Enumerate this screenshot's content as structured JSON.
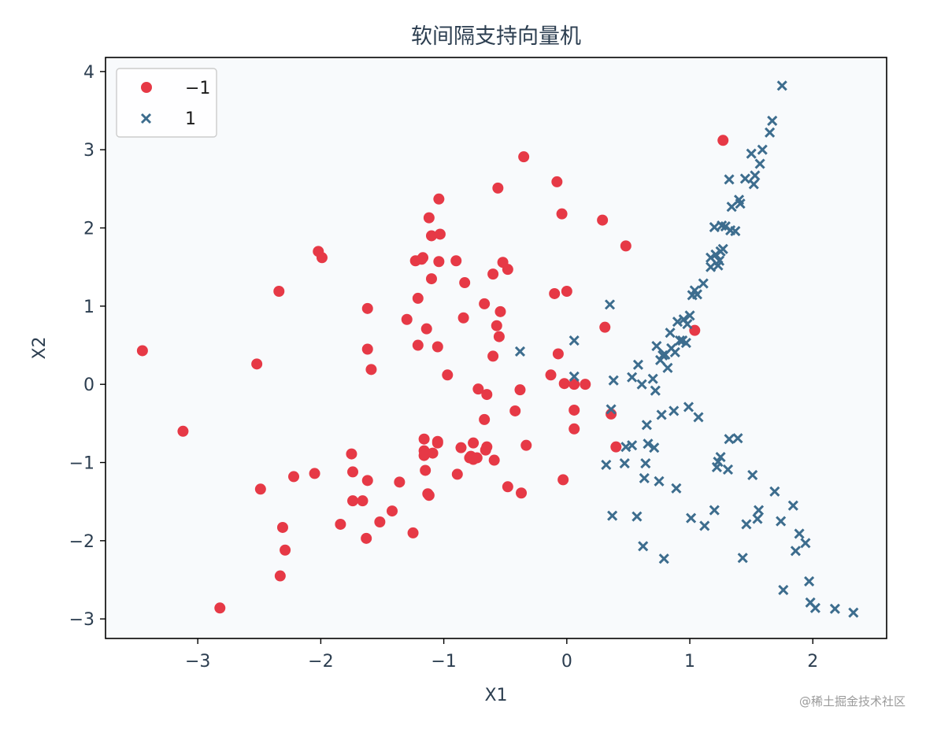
{
  "chart_data": {
    "type": "scatter",
    "title": "软间隔支持向量机",
    "xlabel": "X1",
    "ylabel": "X2",
    "xlim": [
      -3.75,
      2.6
    ],
    "ylim": [
      -3.25,
      4.18
    ],
    "xticks": [
      -3,
      -2,
      -1,
      0,
      1,
      2
    ],
    "yticks": [
      -3,
      -2,
      -1,
      0,
      1,
      2,
      3,
      4
    ],
    "xtick_labels": [
      "−3",
      "−2",
      "−1",
      "0",
      "1",
      "2"
    ],
    "ytick_labels": [
      "−3",
      "−2",
      "−1",
      "0",
      "1",
      "2",
      "3",
      "4"
    ],
    "grid": false,
    "legend_position": "upper-left",
    "background": "#f8fafc",
    "series": [
      {
        "name": "−1",
        "marker": "circle",
        "color": "#e63946",
        "points": [
          [
            -3.45,
            0.43
          ],
          [
            -3.12,
            -0.6
          ],
          [
            -2.82,
            -2.86
          ],
          [
            -2.52,
            0.26
          ],
          [
            -2.49,
            -1.34
          ],
          [
            -2.34,
            1.19
          ],
          [
            -2.33,
            -2.45
          ],
          [
            -2.31,
            -1.83
          ],
          [
            -2.29,
            -2.12
          ],
          [
            -2.22,
            -1.18
          ],
          [
            -2.05,
            -1.14
          ],
          [
            -2.02,
            1.7
          ],
          [
            -1.99,
            1.62
          ],
          [
            -1.84,
            -1.79
          ],
          [
            -1.75,
            -0.89
          ],
          [
            -1.74,
            -1.12
          ],
          [
            -1.74,
            -1.49
          ],
          [
            -1.66,
            -1.49
          ],
          [
            -1.63,
            -1.97
          ],
          [
            -1.62,
            0.97
          ],
          [
            -1.62,
            0.45
          ],
          [
            -1.62,
            -1.23
          ],
          [
            -1.59,
            0.19
          ],
          [
            -1.52,
            -1.76
          ],
          [
            -1.42,
            -1.62
          ],
          [
            -1.36,
            -1.25
          ],
          [
            -1.3,
            0.83
          ],
          [
            -1.25,
            -1.9
          ],
          [
            -1.23,
            1.58
          ],
          [
            -1.21,
            1.1
          ],
          [
            -1.21,
            0.5
          ],
          [
            -1.18,
            1.6
          ],
          [
            -1.17,
            1.62
          ],
          [
            -1.16,
            -0.7
          ],
          [
            -1.16,
            -0.85
          ],
          [
            -1.16,
            -0.91
          ],
          [
            -1.15,
            -1.1
          ],
          [
            -1.14,
            0.71
          ],
          [
            -1.13,
            -1.4
          ],
          [
            -1.12,
            -1.42
          ],
          [
            -1.12,
            2.13
          ],
          [
            -1.1,
            1.9
          ],
          [
            -1.1,
            1.35
          ],
          [
            -1.09,
            -0.88
          ],
          [
            -1.05,
            -0.73
          ],
          [
            -1.05,
            -0.75
          ],
          [
            -1.05,
            0.48
          ],
          [
            -1.04,
            2.37
          ],
          [
            -1.04,
            1.57
          ],
          [
            -1.03,
            1.92
          ],
          [
            -0.97,
            0.12
          ],
          [
            -0.9,
            1.58
          ],
          [
            -0.89,
            -1.15
          ],
          [
            -0.86,
            -0.81
          ],
          [
            -0.84,
            0.85
          ],
          [
            -0.83,
            1.3
          ],
          [
            -0.79,
            -0.94
          ],
          [
            -0.78,
            -0.92
          ],
          [
            -0.76,
            -0.75
          ],
          [
            -0.76,
            -0.96
          ],
          [
            -0.73,
            -0.94
          ],
          [
            -0.72,
            -0.06
          ],
          [
            -0.67,
            1.03
          ],
          [
            -0.67,
            -0.45
          ],
          [
            -0.65,
            -0.13
          ],
          [
            -0.65,
            -0.8
          ],
          [
            -0.66,
            -0.84
          ],
          [
            -0.6,
            0.36
          ],
          [
            -0.6,
            1.41
          ],
          [
            -0.59,
            -0.97
          ],
          [
            -0.57,
            0.75
          ],
          [
            -0.56,
            2.51
          ],
          [
            -0.55,
            0.61
          ],
          [
            -0.54,
            0.93
          ],
          [
            -0.52,
            1.56
          ],
          [
            -0.48,
            1.47
          ],
          [
            -0.48,
            -1.31
          ],
          [
            -0.42,
            -0.34
          ],
          [
            -0.38,
            -0.07
          ],
          [
            -0.37,
            -1.39
          ],
          [
            -0.35,
            2.91
          ],
          [
            -0.33,
            -0.78
          ],
          [
            -0.13,
            0.12
          ],
          [
            -0.1,
            1.16
          ],
          [
            -0.08,
            2.59
          ],
          [
            -0.07,
            0.39
          ],
          [
            -0.04,
            2.18
          ],
          [
            -0.03,
            -1.22
          ],
          [
            -0.02,
            0.01
          ],
          [
            0.0,
            1.19
          ],
          [
            0.06,
            0.0
          ],
          [
            0.06,
            -0.33
          ],
          [
            0.06,
            -0.57
          ],
          [
            0.15,
            0.0
          ],
          [
            0.29,
            2.1
          ],
          [
            0.31,
            0.73
          ],
          [
            0.36,
            -0.38
          ],
          [
            0.4,
            -0.8
          ],
          [
            0.48,
            1.77
          ],
          [
            1.04,
            0.69
          ],
          [
            1.27,
            3.12
          ]
        ]
      },
      {
        "name": "1",
        "marker": "x",
        "color": "#3d6d8e",
        "points": [
          [
            -0.38,
            0.42
          ],
          [
            0.06,
            0.56
          ],
          [
            0.06,
            0.1
          ],
          [
            0.32,
            -1.03
          ],
          [
            0.35,
            1.02
          ],
          [
            0.36,
            -0.32
          ],
          [
            0.38,
            0.05
          ],
          [
            0.37,
            -1.68
          ],
          [
            0.47,
            -1.01
          ],
          [
            0.48,
            -0.8
          ],
          [
            0.53,
            -0.78
          ],
          [
            0.53,
            0.09
          ],
          [
            0.57,
            -1.69
          ],
          [
            0.58,
            0.25
          ],
          [
            0.61,
            0.0
          ],
          [
            0.62,
            -2.07
          ],
          [
            0.63,
            -1.2
          ],
          [
            0.64,
            -1.01
          ],
          [
            0.65,
            -0.52
          ],
          [
            0.66,
            -0.76
          ],
          [
            0.7,
            0.07
          ],
          [
            0.71,
            -0.81
          ],
          [
            0.72,
            -0.08
          ],
          [
            0.73,
            0.49
          ],
          [
            0.75,
            -1.24
          ],
          [
            0.76,
            0.31
          ],
          [
            0.77,
            -0.39
          ],
          [
            0.78,
            0.37
          ],
          [
            0.79,
            -2.23
          ],
          [
            0.8,
            0.38
          ],
          [
            0.82,
            0.21
          ],
          [
            0.84,
            0.66
          ],
          [
            0.85,
            0.46
          ],
          [
            0.87,
            -0.34
          ],
          [
            0.88,
            0.41
          ],
          [
            0.89,
            -1.33
          ],
          [
            0.9,
            0.8
          ],
          [
            0.92,
            0.56
          ],
          [
            0.94,
            0.56
          ],
          [
            0.95,
            0.83
          ],
          [
            0.97,
            0.53
          ],
          [
            0.98,
            0.77
          ],
          [
            0.99,
            -0.29
          ],
          [
            1.0,
            0.88
          ],
          [
            1.01,
            -1.71
          ],
          [
            1.02,
            1.14
          ],
          [
            1.04,
            1.2
          ],
          [
            1.06,
            1.15
          ],
          [
            1.07,
            -0.42
          ],
          [
            1.11,
            1.29
          ],
          [
            1.12,
            -1.81
          ],
          [
            1.17,
            1.62
          ],
          [
            1.17,
            1.5
          ],
          [
            1.2,
            2.01
          ],
          [
            1.2,
            -1.61
          ],
          [
            1.21,
            1.66
          ],
          [
            1.22,
            -1.06
          ],
          [
            1.23,
            1.52
          ],
          [
            1.23,
            -0.99
          ],
          [
            1.24,
            1.58
          ],
          [
            1.25,
            -0.93
          ],
          [
            1.25,
            1.7
          ],
          [
            1.26,
            2.03
          ],
          [
            1.27,
            1.73
          ],
          [
            1.29,
            2.02
          ],
          [
            1.31,
            -1.09
          ],
          [
            1.32,
            2.62
          ],
          [
            1.32,
            -0.7
          ],
          [
            1.33,
            1.97
          ],
          [
            1.34,
            2.27
          ],
          [
            1.37,
            1.96
          ],
          [
            1.39,
            -0.69
          ],
          [
            1.4,
            2.36
          ],
          [
            1.41,
            2.31
          ],
          [
            1.43,
            -2.22
          ],
          [
            1.45,
            2.63
          ],
          [
            1.46,
            -1.79
          ],
          [
            1.5,
            2.95
          ],
          [
            1.51,
            -1.16
          ],
          [
            1.52,
            2.56
          ],
          [
            1.53,
            2.67
          ],
          [
            1.55,
            -1.72
          ],
          [
            1.56,
            -1.61
          ],
          [
            1.57,
            2.82
          ],
          [
            1.59,
            3.0
          ],
          [
            1.65,
            3.22
          ],
          [
            1.67,
            3.37
          ],
          [
            1.69,
            -1.37
          ],
          [
            1.74,
            -1.75
          ],
          [
            1.75,
            3.82
          ],
          [
            1.76,
            -2.63
          ],
          [
            1.84,
            -1.55
          ],
          [
            1.86,
            -2.13
          ],
          [
            1.89,
            -1.91
          ],
          [
            1.94,
            -2.03
          ],
          [
            1.97,
            -2.52
          ],
          [
            1.98,
            -2.79
          ],
          [
            2.02,
            -2.86
          ],
          [
            2.18,
            -2.87
          ],
          [
            2.33,
            -2.92
          ]
        ]
      }
    ]
  },
  "watermark": "@稀土掘金技术社区"
}
